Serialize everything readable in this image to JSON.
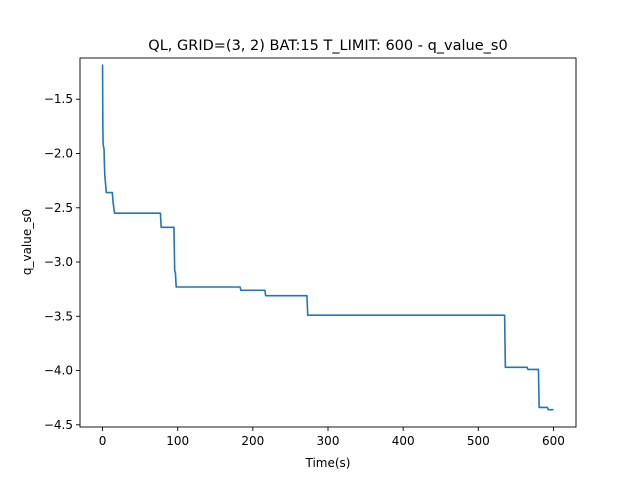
{
  "chart_data": {
    "type": "line",
    "title": "QL, GRID=(3, 2)   BAT:15 T_LIMIT:  600 - q_value_s0",
    "xlabel": "Time(s)",
    "ylabel": "q_value_s0",
    "xlim": [
      -30,
      630
    ],
    "ylim": [
      -4.52,
      -1.12
    ],
    "xticks": [
      0,
      100,
      200,
      300,
      400,
      500,
      600
    ],
    "xtick_labels": [
      "0",
      "100",
      "200",
      "300",
      "400",
      "500",
      "600"
    ],
    "yticks": [
      -1.5,
      -2.0,
      -2.5,
      -3.0,
      -3.5,
      -4.0,
      -4.5
    ],
    "ytick_labels": [
      "−1.5",
      "−2.0",
      "−2.5",
      "−3.0",
      "−3.5",
      "−4.0",
      "−4.5"
    ],
    "grid": false,
    "color": "#1f77b4",
    "series": [
      {
        "x": [
          0,
          0.4,
          0.7,
          1.1,
          2,
          2.5,
          3,
          5,
          6,
          13,
          14,
          16,
          77,
          78,
          95,
          96,
          97,
          98,
          183,
          184,
          216,
          217,
          272,
          273,
          535,
          536,
          565,
          566,
          580,
          581,
          592,
          593,
          600
        ],
        "y": [
          -1.18,
          -1.75,
          -1.9,
          -1.93,
          -1.96,
          -2.1,
          -2.2,
          -2.36,
          -2.36,
          -2.36,
          -2.45,
          -2.55,
          -2.55,
          -2.68,
          -2.68,
          -3.08,
          -3.1,
          -3.23,
          -3.23,
          -3.26,
          -3.26,
          -3.31,
          -3.31,
          -3.49,
          -3.49,
          -3.97,
          -3.97,
          -3.99,
          -3.99,
          -4.34,
          -4.34,
          -4.36,
          -4.36
        ]
      }
    ]
  }
}
